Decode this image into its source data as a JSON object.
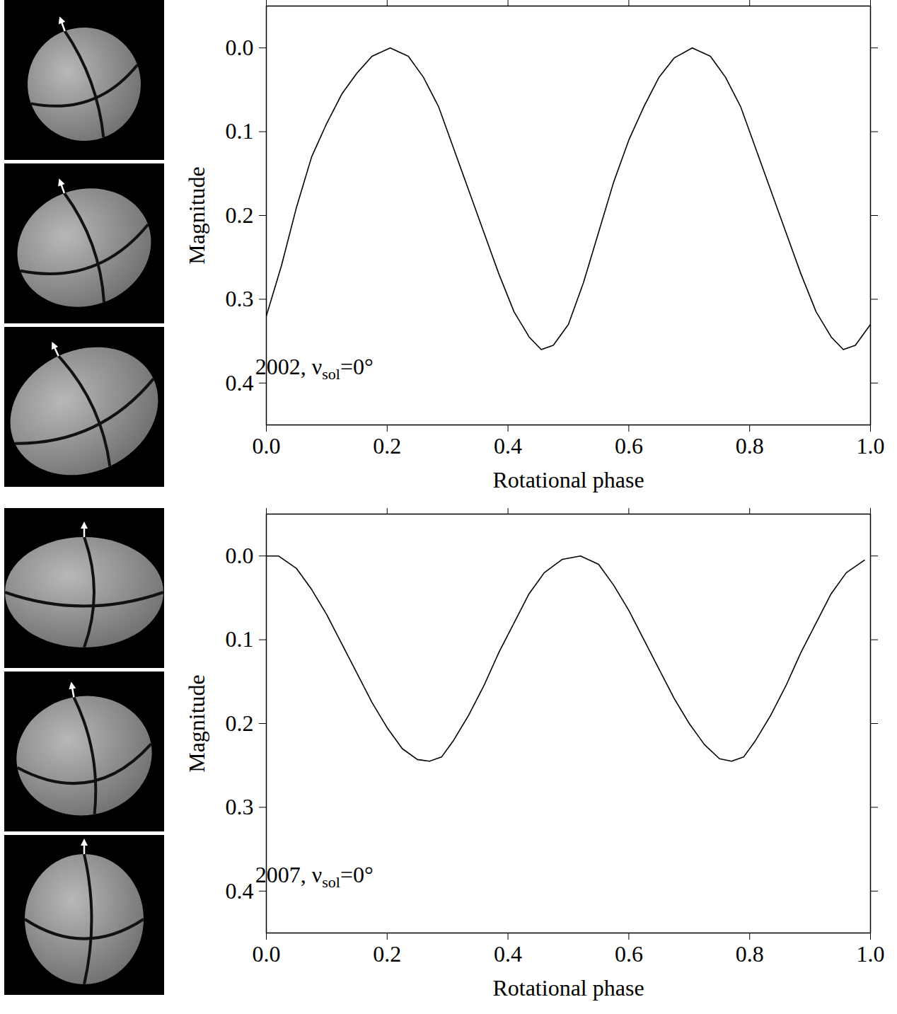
{
  "chart_data": [
    {
      "type": "line",
      "x_label": "Rotational phase",
      "y_label": "Magnitude",
      "annotation": {
        "main": "2002, ν",
        "subscript": "sol",
        "rest": "=0°"
      },
      "color": "#000000",
      "xlim": [
        0,
        1
      ],
      "ylim": [
        0.45,
        -0.05
      ],
      "xticks": [
        {
          "value": 0,
          "label": "0.0"
        },
        0.2,
        0.4,
        0.6,
        0.8,
        {
          "value": 1,
          "label": "1.0"
        }
      ],
      "yticks": [
        {
          "value": 0,
          "label": "0.0"
        },
        0.1,
        0.2,
        0.3,
        0.4
      ],
      "x": [
        0,
        0.025,
        0.05,
        0.075,
        0.1,
        0.125,
        0.15,
        0.175,
        0.205,
        0.235,
        0.26,
        0.285,
        0.31,
        0.335,
        0.36,
        0.385,
        0.41,
        0.435,
        0.455,
        0.475,
        0.5,
        0.525,
        0.55,
        0.575,
        0.6,
        0.625,
        0.65,
        0.675,
        0.705,
        0.735,
        0.76,
        0.785,
        0.81,
        0.835,
        0.86,
        0.885,
        0.91,
        0.935,
        0.955,
        0.975,
        1.0
      ],
      "values": [
        0.32,
        0.26,
        0.19,
        0.13,
        0.09,
        0.055,
        0.03,
        0.01,
        0.0,
        0.01,
        0.035,
        0.07,
        0.12,
        0.17,
        0.22,
        0.27,
        0.315,
        0.345,
        0.36,
        0.355,
        0.33,
        0.28,
        0.22,
        0.16,
        0.11,
        0.07,
        0.035,
        0.012,
        0.0,
        0.01,
        0.035,
        0.07,
        0.12,
        0.17,
        0.22,
        0.27,
        0.315,
        0.345,
        0.36,
        0.355,
        0.33
      ]
    },
    {
      "type": "line",
      "x_label": "Rotational phase",
      "y_label": "Magnitude",
      "annotation": {
        "main": "2007, ν",
        "subscript": "sol",
        "rest": "=0°"
      },
      "color": "#000000",
      "xlim": [
        0,
        1
      ],
      "ylim": [
        0.45,
        -0.05
      ],
      "xticks": [
        {
          "value": 0,
          "label": "0.0"
        },
        0.2,
        0.4,
        0.6,
        0.8,
        {
          "value": 1,
          "label": "1.0"
        }
      ],
      "yticks": [
        {
          "value": 0,
          "label": "0.0"
        },
        0.1,
        0.2,
        0.3,
        0.4
      ],
      "x": [
        0,
        0.02,
        0.05,
        0.075,
        0.1,
        0.125,
        0.15,
        0.175,
        0.2,
        0.225,
        0.25,
        0.27,
        0.29,
        0.31,
        0.335,
        0.36,
        0.385,
        0.41,
        0.435,
        0.46,
        0.49,
        0.52,
        0.55,
        0.575,
        0.6,
        0.625,
        0.65,
        0.675,
        0.7,
        0.725,
        0.75,
        0.77,
        0.79,
        0.81,
        0.835,
        0.86,
        0.885,
        0.91,
        0.935,
        0.96,
        0.99
      ],
      "values": [
        0.0,
        0.0,
        0.015,
        0.04,
        0.07,
        0.105,
        0.14,
        0.175,
        0.205,
        0.23,
        0.243,
        0.245,
        0.24,
        0.22,
        0.19,
        0.155,
        0.115,
        0.08,
        0.045,
        0.02,
        0.004,
        0.0,
        0.01,
        0.035,
        0.065,
        0.1,
        0.135,
        0.17,
        0.2,
        0.225,
        0.242,
        0.245,
        0.24,
        0.22,
        0.19,
        0.155,
        0.115,
        0.08,
        0.045,
        0.02,
        0.005
      ]
    }
  ]
}
